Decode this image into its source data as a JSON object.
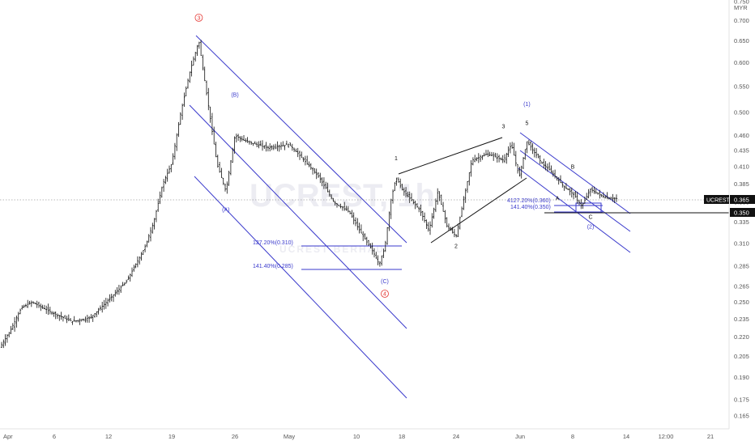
{
  "chart_data": {
    "type": "candlestick",
    "symbol": "UCREST",
    "currency": "MYR",
    "watermark": "UCREST, 1h",
    "watermark_sub": "UCREST BERHAD",
    "price_axis": {
      "ticks": [
        "0.750",
        "0.700",
        "0.650",
        "0.600",
        "0.550",
        "0.500",
        "0.460",
        "0.435",
        "0.410",
        "0.385",
        "0.360",
        "0.335",
        "0.310",
        "0.285",
        "0.265",
        "0.250",
        "0.235",
        "0.220",
        "0.205",
        "0.190",
        "0.175",
        "0.165"
      ],
      "ylim": [
        0.162,
        0.755
      ],
      "scale": "log"
    },
    "time_axis": {
      "ticks": [
        "Apr",
        "6",
        "12",
        "19",
        "26",
        "May",
        "10",
        "18",
        "24",
        "Jun",
        "8",
        "14",
        "12:00",
        "21"
      ]
    },
    "last_price_label": "0.365",
    "level_label": "0.350",
    "series": [
      {
        "name": "UCREST",
        "values": [
          {
            "x": "Apr 1",
            "y": 0.212
          },
          {
            "x": "Apr 2",
            "y": 0.226
          },
          {
            "x": "Apr 3",
            "y": 0.245
          },
          {
            "x": "Apr 4",
            "y": 0.25
          },
          {
            "x": "Apr 6",
            "y": 0.24
          },
          {
            "x": "Apr 8",
            "y": 0.233
          },
          {
            "x": "Apr 10",
            "y": 0.236
          },
          {
            "x": "Apr 12",
            "y": 0.252
          },
          {
            "x": "Apr 14",
            "y": 0.27
          },
          {
            "x": "Apr 16",
            "y": 0.305
          },
          {
            "x": "Apr 17",
            "y": 0.335
          },
          {
            "x": "Apr 18",
            "y": 0.385
          },
          {
            "x": "Apr 19",
            "y": 0.415
          },
          {
            "x": "Apr 20",
            "y": 0.5
          },
          {
            "x": "Apr 21",
            "y": 0.58
          },
          {
            "x": "Apr 22",
            "y": 0.65
          },
          {
            "x": "Apr 23",
            "y": 0.52
          },
          {
            "x": "Apr 24",
            "y": 0.415
          },
          {
            "x": "Apr 25",
            "y": 0.375
          },
          {
            "x": "Apr 26",
            "y": 0.46
          },
          {
            "x": "Apr 27",
            "y": 0.45
          },
          {
            "x": "Apr 29",
            "y": 0.44
          },
          {
            "x": "May 1",
            "y": 0.445
          },
          {
            "x": "May 3",
            "y": 0.42
          },
          {
            "x": "May 5",
            "y": 0.395
          },
          {
            "x": "May 7",
            "y": 0.36
          },
          {
            "x": "May 9",
            "y": 0.348
          },
          {
            "x": "May 11",
            "y": 0.32
          },
          {
            "x": "May 13",
            "y": 0.3
          },
          {
            "x": "May 14",
            "y": 0.287
          },
          {
            "x": "May 15",
            "y": 0.305
          },
          {
            "x": "May 16",
            "y": 0.36
          },
          {
            "x": "May 17",
            "y": 0.395
          },
          {
            "x": "May 18",
            "y": 0.378
          },
          {
            "x": "May 20",
            "y": 0.35
          },
          {
            "x": "May 21",
            "y": 0.325
          },
          {
            "x": "May 22",
            "y": 0.375
          },
          {
            "x": "May 23",
            "y": 0.33
          },
          {
            "x": "May 24",
            "y": 0.318
          },
          {
            "x": "May 26",
            "y": 0.42
          },
          {
            "x": "May 28",
            "y": 0.43
          },
          {
            "x": "May 30",
            "y": 0.42
          },
          {
            "x": "May 31",
            "y": 0.445
          },
          {
            "x": "Jun 1",
            "y": 0.395
          },
          {
            "x": "Jun 2",
            "y": 0.45
          },
          {
            "x": "Jun 3",
            "y": 0.432
          },
          {
            "x": "Jun 4",
            "y": 0.415
          },
          {
            "x": "Jun 5",
            "y": 0.405
          },
          {
            "x": "Jun 6",
            "y": 0.392
          },
          {
            "x": "Jun 7",
            "y": 0.38
          },
          {
            "x": "Jun 8",
            "y": 0.372
          },
          {
            "x": "Jun 9",
            "y": 0.355
          },
          {
            "x": "Jun 10",
            "y": 0.378
          },
          {
            "x": "Jun 11",
            "y": 0.37
          },
          {
            "x": "Jun 12",
            "y": 0.366
          },
          {
            "x": "Jun 13",
            "y": 0.365
          }
        ]
      }
    ],
    "wave_labels": [
      {
        "text": "3",
        "x": "Apr 22",
        "price": 0.702,
        "color": "#e53935",
        "circled": true
      },
      {
        "text": "(B)",
        "x": "Apr 26",
        "price": 0.53,
        "color": "#3a3acc"
      },
      {
        "text": "(A)",
        "x": "Apr 25",
        "price": 0.348,
        "color": "#3a3acc"
      },
      {
        "text": "(C)",
        "x": "May 15",
        "price": 0.268,
        "color": "#3a3acc"
      },
      {
        "text": "4",
        "x": "May 15",
        "price": 0.256,
        "color": "#e53935",
        "circled": true
      },
      {
        "text": "1",
        "x": "May 17",
        "price": 0.42,
        "color": "#111111"
      },
      {
        "text": "2",
        "x": "May 24",
        "price": 0.305,
        "color": "#111111"
      },
      {
        "text": "3",
        "x": "May 30",
        "price": 0.472,
        "color": "#111111"
      },
      {
        "text": "(1)",
        "x": "Jun 2",
        "price": 0.512,
        "color": "#3a3acc"
      },
      {
        "text": "5",
        "x": "Jun 2",
        "price": 0.478,
        "color": "#111111"
      },
      {
        "text": "A",
        "x": "Jun 6",
        "price": 0.363,
        "color": "#111111"
      },
      {
        "text": "B",
        "x": "Jun 8",
        "price": 0.407,
        "color": "#111111"
      },
      {
        "text": "C",
        "x": "Jun 10",
        "price": 0.339,
        "color": "#111111"
      },
      {
        "text": "(2)",
        "x": "Jun 10",
        "price": 0.327,
        "color": "#3a3acc"
      }
    ],
    "fib_levels": [
      {
        "label": "127.20%(0.310)",
        "price": 0.31
      },
      {
        "label": "141.40%(0.285)",
        "price": 0.285
      },
      {
        "label": "4127.20%(0.360)",
        "price": 0.36
      },
      {
        "label": "141.40%(0.350)",
        "price": 0.35
      }
    ],
    "channel_color": "#3a3acc",
    "wedge_color": "#111111",
    "up_color": "#111111",
    "down_color": "#111111",
    "price_label_bg": "#111111"
  }
}
